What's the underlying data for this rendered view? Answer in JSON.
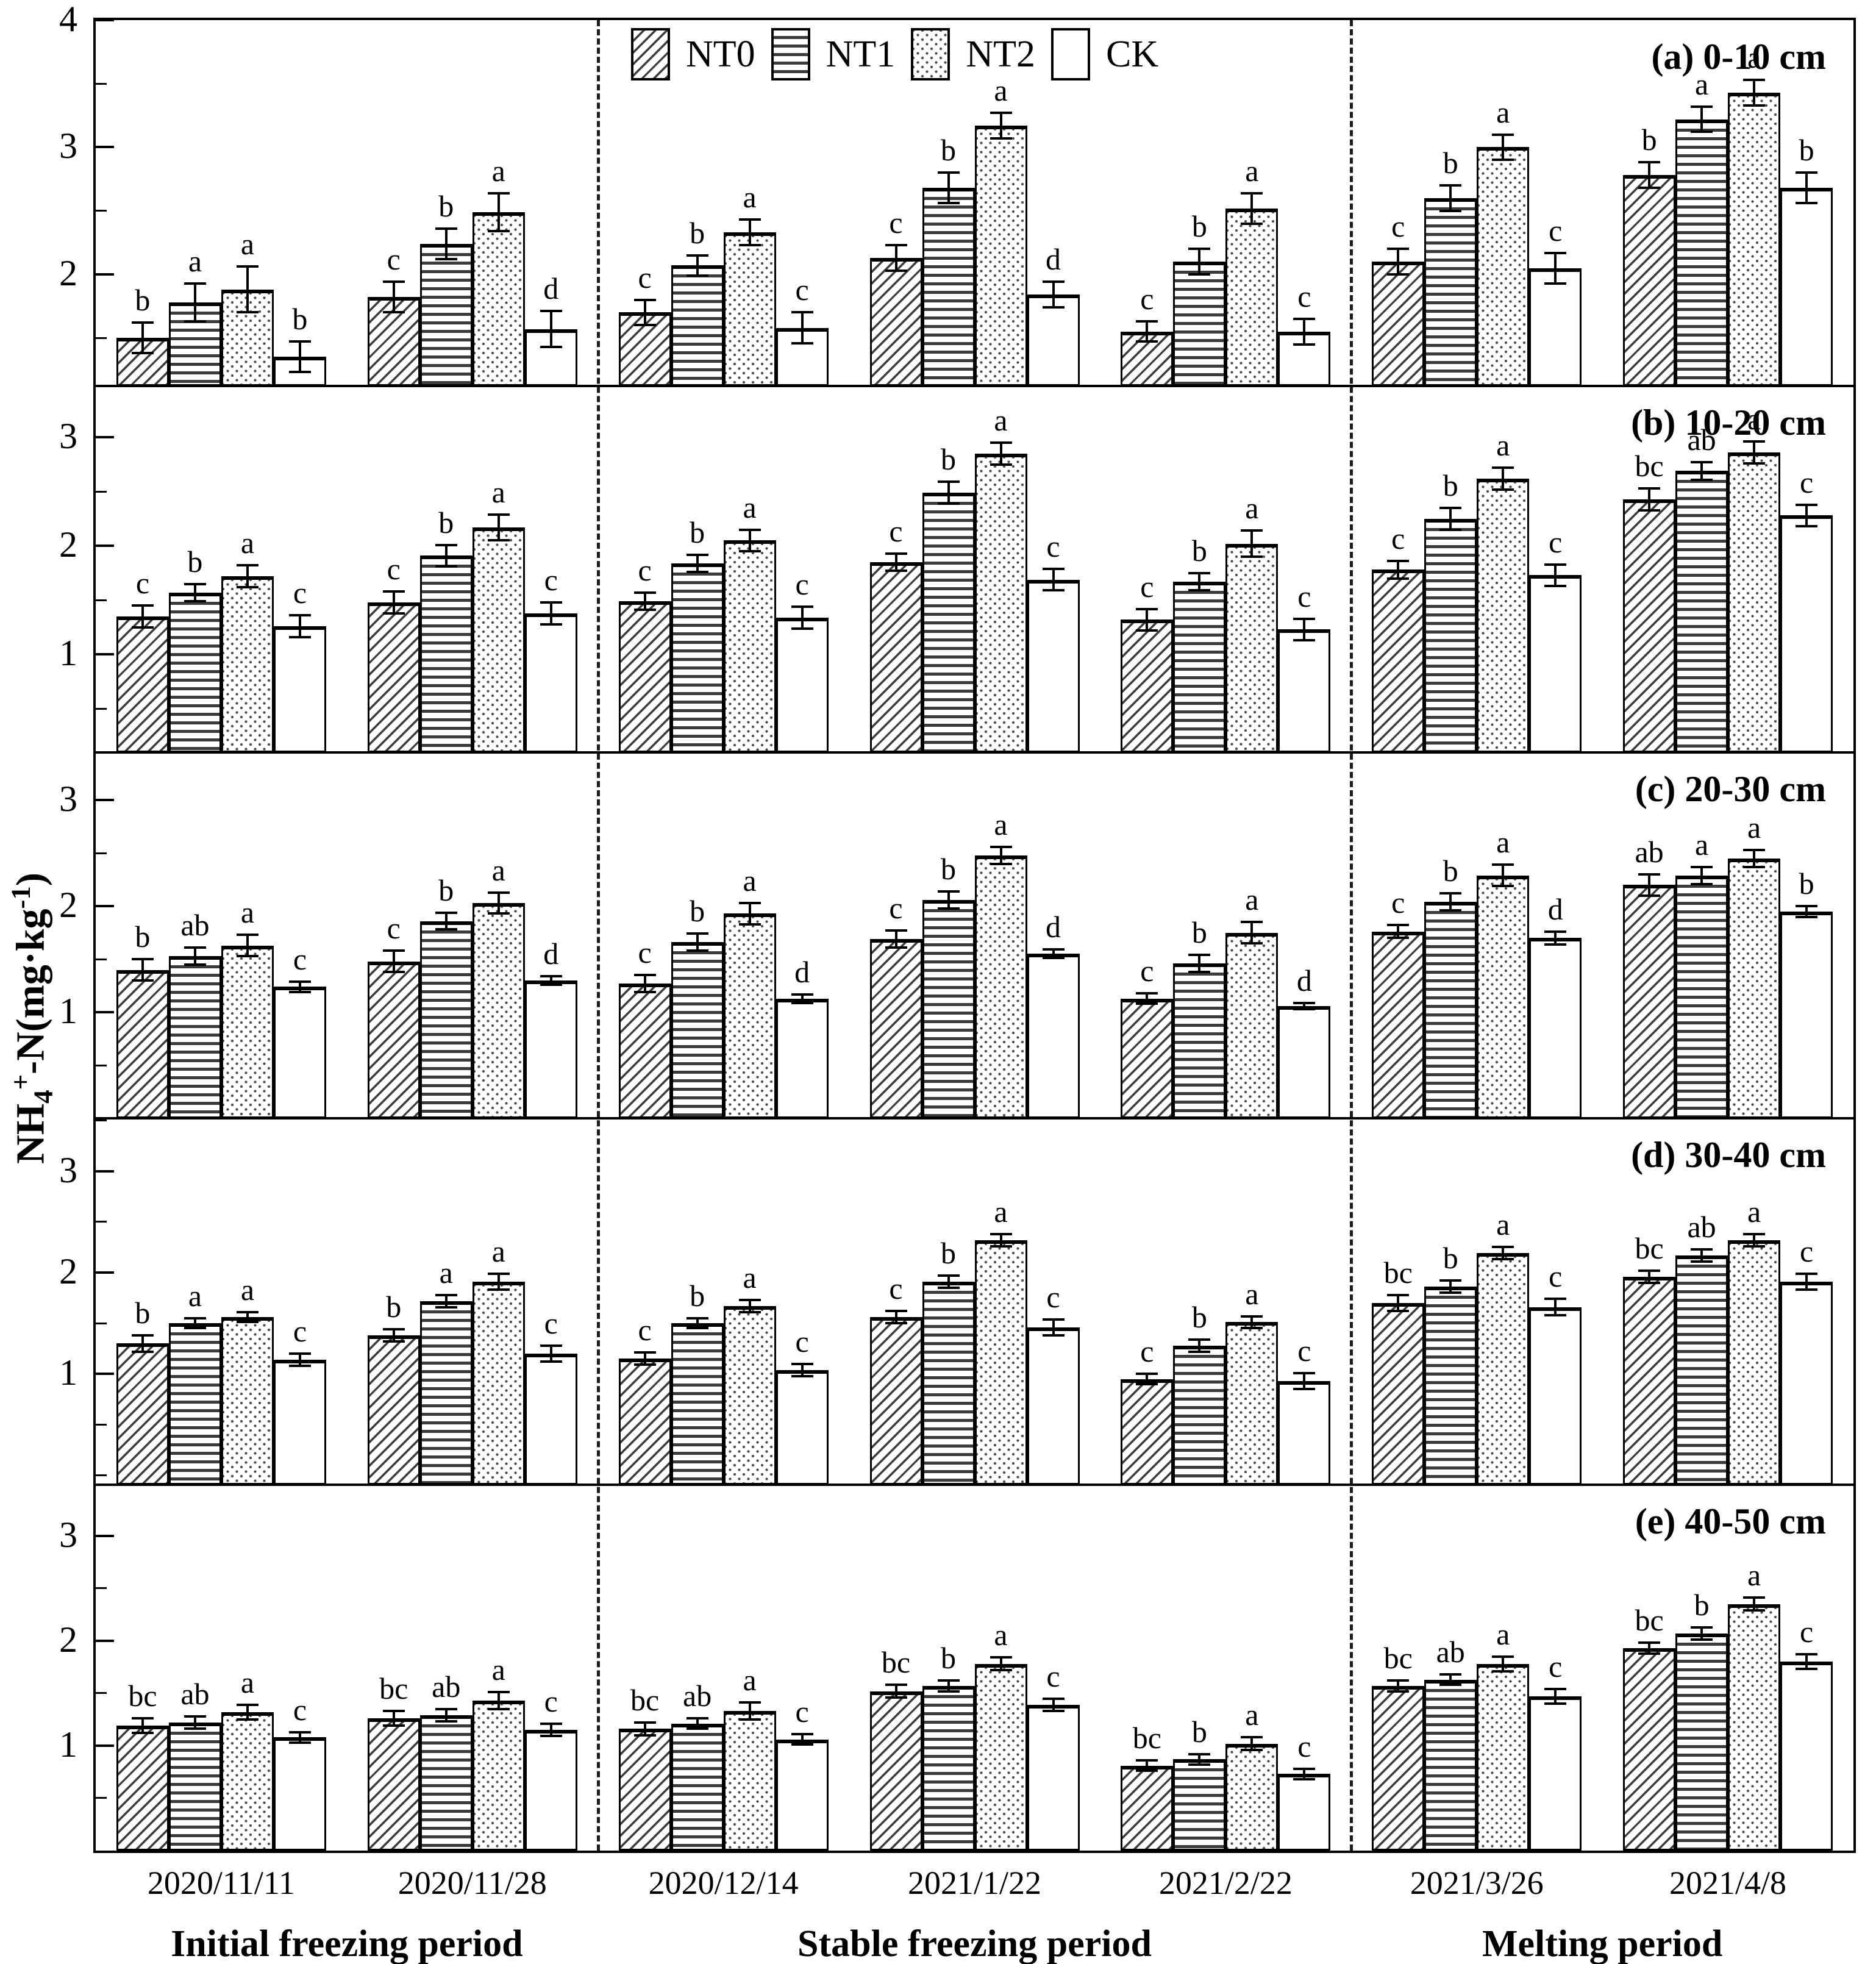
{
  "y_label_parts": {
    "p1": "NH",
    "sub": "4",
    "sup": "+",
    "p2": "-N(mg·kg",
    "sup2": "-1",
    "p3": ")"
  },
  "legend": [
    {
      "label": "NT0",
      "pattern": "NT0"
    },
    {
      "label": "NT1",
      "pattern": "NT1"
    },
    {
      "label": "NT2",
      "pattern": "NT2"
    },
    {
      "label": "CK",
      "pattern": "CK"
    }
  ],
  "x_dates": [
    "2020/11/11",
    "2020/11/28",
    "2020/12/14",
    "2021/1/22",
    "2021/2/22",
    "2021/3/26",
    "2021/4/8"
  ],
  "periods": [
    {
      "label": "Initial freezing period",
      "from": 0,
      "to": 1
    },
    {
      "label": "Stable freezing period",
      "from": 2,
      "to": 4
    },
    {
      "label": "Melting period",
      "from": 5,
      "to": 6
    }
  ],
  "chart_data": {
    "type": "bar",
    "series": [
      "NT0",
      "NT1",
      "NT2",
      "CK"
    ],
    "categories": [
      "2020/11/11",
      "2020/11/28",
      "2020/12/14",
      "2021/1/22",
      "2021/2/22",
      "2021/3/26",
      "2021/4/8"
    ],
    "ylabel": "NH4+-N(mg·kg-1)",
    "grid": false,
    "legend_position": "top-center",
    "error_bars": true,
    "significance_letters": true,
    "panels": [
      {
        "label": "(a) 0-10 cm",
        "ymin": 1.12,
        "ymax": 4.0,
        "yticks": [
          2,
          3,
          4
        ],
        "values": [
          [
            1.5,
            1.78,
            1.88,
            1.35
          ],
          [
            1.82,
            2.24,
            2.49,
            1.57
          ],
          [
            1.7,
            2.07,
            2.33,
            1.58
          ],
          [
            2.13,
            2.68,
            3.17,
            1.84
          ],
          [
            1.55,
            2.1,
            2.52,
            1.55
          ],
          [
            2.1,
            2.6,
            3.0,
            2.05
          ],
          [
            2.78,
            3.22,
            3.43,
            2.68
          ]
        ],
        "errors": [
          [
            0.12,
            0.15,
            0.18,
            0.12
          ],
          [
            0.12,
            0.12,
            0.15,
            0.14
          ],
          [
            0.1,
            0.08,
            0.1,
            0.12
          ],
          [
            0.1,
            0.12,
            0.1,
            0.1
          ],
          [
            0.08,
            0.1,
            0.12,
            0.1
          ],
          [
            0.1,
            0.1,
            0.1,
            0.12
          ],
          [
            0.1,
            0.1,
            0.1,
            0.12
          ]
        ],
        "letters": [
          [
            "b",
            "a",
            "a",
            "b"
          ],
          [
            "c",
            "b",
            "a",
            "d"
          ],
          [
            "c",
            "b",
            "a",
            "c"
          ],
          [
            "c",
            "b",
            "a",
            "d"
          ],
          [
            "c",
            "b",
            "a",
            "c"
          ],
          [
            "c",
            "b",
            "a",
            "c"
          ],
          [
            "b",
            "a",
            "a",
            "b"
          ]
        ]
      },
      {
        "label": "(b) 10-20 cm",
        "ymin": 0.1,
        "ymax": 3.47,
        "yticks": [
          1,
          2,
          3
        ],
        "values": [
          [
            1.35,
            1.57,
            1.72,
            1.26
          ],
          [
            1.48,
            1.91,
            2.17,
            1.38
          ],
          [
            1.49,
            1.84,
            2.05,
            1.34
          ],
          [
            1.85,
            2.49,
            2.85,
            1.69
          ],
          [
            1.32,
            1.67,
            2.02,
            1.23
          ],
          [
            1.78,
            2.25,
            2.62,
            1.73
          ],
          [
            2.43,
            2.69,
            2.86,
            2.28
          ]
        ],
        "errors": [
          [
            0.1,
            0.08,
            0.1,
            0.1
          ],
          [
            0.1,
            0.1,
            0.12,
            0.1
          ],
          [
            0.08,
            0.08,
            0.1,
            0.1
          ],
          [
            0.08,
            0.1,
            0.1,
            0.1
          ],
          [
            0.1,
            0.08,
            0.12,
            0.1
          ],
          [
            0.08,
            0.1,
            0.1,
            0.1
          ],
          [
            0.1,
            0.08,
            0.1,
            0.1
          ]
        ],
        "letters": [
          [
            "c",
            "b",
            "a",
            "c"
          ],
          [
            "c",
            "b",
            "a",
            "c"
          ],
          [
            "c",
            "b",
            "a",
            "c"
          ],
          [
            "c",
            "b",
            "a",
            "c"
          ],
          [
            "c",
            "b",
            "a",
            "c"
          ],
          [
            "c",
            "b",
            "a",
            "c"
          ],
          [
            "bc",
            "ab",
            "a",
            "c"
          ]
        ]
      },
      {
        "label": "(c) 20-30 cm",
        "ymin": 0.0,
        "ymax": 3.45,
        "yticks": [
          1,
          2,
          3
        ],
        "values": [
          [
            1.4,
            1.53,
            1.63,
            1.24
          ],
          [
            1.48,
            1.86,
            2.03,
            1.3
          ],
          [
            1.27,
            1.66,
            1.93,
            1.13
          ],
          [
            1.69,
            2.06,
            2.48,
            1.55
          ],
          [
            1.13,
            1.46,
            1.75,
            1.06
          ],
          [
            1.76,
            2.04,
            2.29,
            1.7
          ],
          [
            2.2,
            2.29,
            2.45,
            1.95
          ]
        ],
        "errors": [
          [
            0.1,
            0.08,
            0.1,
            0.05
          ],
          [
            0.1,
            0.08,
            0.1,
            0.04
          ],
          [
            0.08,
            0.08,
            0.1,
            0.04
          ],
          [
            0.08,
            0.08,
            0.08,
            0.04
          ],
          [
            0.05,
            0.08,
            0.1,
            0.03
          ],
          [
            0.06,
            0.08,
            0.1,
            0.06
          ],
          [
            0.1,
            0.08,
            0.08,
            0.05
          ]
        ],
        "letters": [
          [
            "b",
            "ab",
            "a",
            "c"
          ],
          [
            "c",
            "b",
            "a",
            "d"
          ],
          [
            "c",
            "b",
            "a",
            "d"
          ],
          [
            "c",
            "b",
            "a",
            "d"
          ],
          [
            "c",
            "b",
            "a",
            "d"
          ],
          [
            "c",
            "b",
            "a",
            "d"
          ],
          [
            "ab",
            "a",
            "a",
            "b"
          ]
        ]
      },
      {
        "label": "(d) 30-40 cm",
        "ymin": -0.09,
        "ymax": 3.52,
        "yticks": [
          1,
          2,
          3
        ],
        "values": [
          [
            1.3,
            1.5,
            1.56,
            1.14
          ],
          [
            1.38,
            1.72,
            1.91,
            1.2
          ],
          [
            1.15,
            1.5,
            1.67,
            1.04
          ],
          [
            1.56,
            1.91,
            2.32,
            1.46
          ],
          [
            0.95,
            1.28,
            1.51,
            0.93
          ],
          [
            1.7,
            1.86,
            2.19,
            1.66
          ],
          [
            1.96,
            2.17,
            2.32,
            1.91
          ]
        ],
        "errors": [
          [
            0.08,
            0.05,
            0.05,
            0.06
          ],
          [
            0.06,
            0.06,
            0.08,
            0.08
          ],
          [
            0.06,
            0.05,
            0.06,
            0.06
          ],
          [
            0.06,
            0.06,
            0.06,
            0.08
          ],
          [
            0.05,
            0.06,
            0.06,
            0.08
          ],
          [
            0.08,
            0.06,
            0.06,
            0.08
          ],
          [
            0.06,
            0.06,
            0.06,
            0.08
          ]
        ],
        "letters": [
          [
            "b",
            "a",
            "a",
            "c"
          ],
          [
            "b",
            "a",
            "a",
            "c"
          ],
          [
            "c",
            "b",
            "a",
            "c"
          ],
          [
            "c",
            "b",
            "a",
            "c"
          ],
          [
            "c",
            "b",
            "a",
            "c"
          ],
          [
            "bc",
            "b",
            "a",
            "c"
          ],
          [
            "bc",
            "ab",
            "a",
            "c"
          ]
        ]
      },
      {
        "label": "(e) 40-50 cm",
        "ymin": 0.0,
        "ymax": 3.49,
        "yticks": [
          1,
          2,
          3
        ],
        "values": [
          [
            1.19,
            1.22,
            1.32,
            1.08
          ],
          [
            1.26,
            1.29,
            1.43,
            1.15
          ],
          [
            1.16,
            1.21,
            1.33,
            1.06
          ],
          [
            1.52,
            1.57,
            1.78,
            1.39
          ],
          [
            0.81,
            0.87,
            1.02,
            0.73
          ],
          [
            1.57,
            1.63,
            1.78,
            1.47
          ],
          [
            1.93,
            2.07,
            2.35,
            1.8
          ]
        ],
        "errors": [
          [
            0.07,
            0.06,
            0.07,
            0.05
          ],
          [
            0.07,
            0.06,
            0.08,
            0.06
          ],
          [
            0.06,
            0.05,
            0.08,
            0.05
          ],
          [
            0.06,
            0.05,
            0.06,
            0.06
          ],
          [
            0.05,
            0.05,
            0.06,
            0.05
          ],
          [
            0.05,
            0.05,
            0.07,
            0.07
          ],
          [
            0.05,
            0.06,
            0.06,
            0.07
          ]
        ],
        "letters": [
          [
            "bc",
            "ab",
            "a",
            "c"
          ],
          [
            "bc",
            "ab",
            "a",
            "c"
          ],
          [
            "bc",
            "ab",
            "a",
            "c"
          ],
          [
            "bc",
            "b",
            "a",
            "c"
          ],
          [
            "bc",
            "b",
            "a",
            "c"
          ],
          [
            "bc",
            "ab",
            "a",
            "c"
          ],
          [
            "bc",
            "b",
            "a",
            "c"
          ]
        ]
      }
    ]
  }
}
